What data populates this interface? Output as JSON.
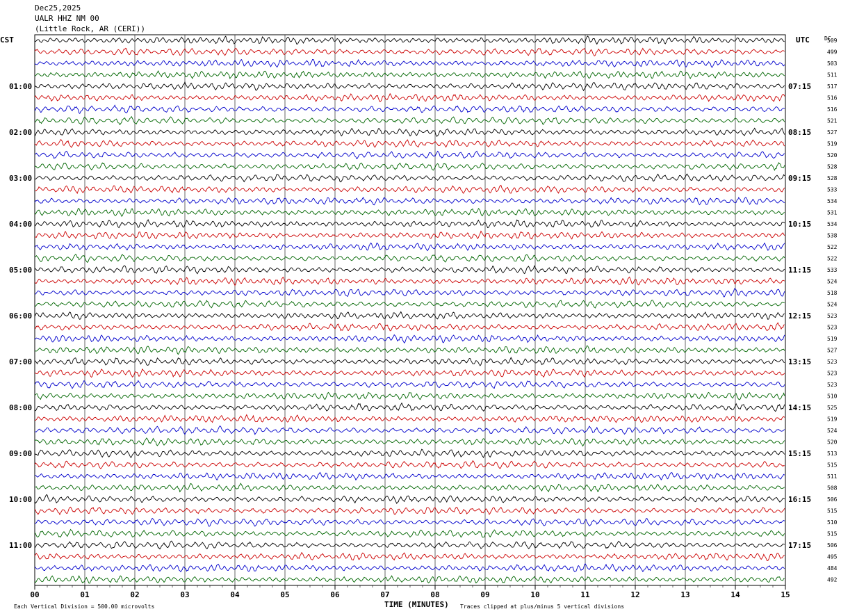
{
  "header": {
    "date": "Dec25,2025",
    "station": "UALR HHZ NM 00",
    "location": "(Little Rock, AR (CERI))"
  },
  "chart_data": {
    "type": "line",
    "description_kind": "helicorder",
    "left_axis_label": "CST",
    "right_axis_label": "UTC",
    "dc_header": "DC",
    "xlabel": "TIME (MINUTES)",
    "x_ticks": [
      "00",
      "01",
      "02",
      "03",
      "04",
      "05",
      "06",
      "07",
      "08",
      "09",
      "10",
      "11",
      "12",
      "13",
      "14",
      "15"
    ],
    "xlim": [
      0,
      15
    ],
    "trace_colors": [
      "#000000",
      "#cc0000",
      "#0000cc",
      "#006600"
    ],
    "grid": true,
    "left_hour_labels": [
      {
        "row": 4,
        "text": "01:00"
      },
      {
        "row": 8,
        "text": "02:00"
      },
      {
        "row": 12,
        "text": "03:00"
      },
      {
        "row": 16,
        "text": "04:00"
      },
      {
        "row": 20,
        "text": "05:00"
      },
      {
        "row": 24,
        "text": "06:00"
      },
      {
        "row": 28,
        "text": "07:00"
      },
      {
        "row": 32,
        "text": "08:00"
      },
      {
        "row": 36,
        "text": "09:00"
      },
      {
        "row": 40,
        "text": "10:00"
      },
      {
        "row": 44,
        "text": "11:00"
      }
    ],
    "right_hour_labels": [
      {
        "row": 4,
        "text": "07:15"
      },
      {
        "row": 8,
        "text": "08:15"
      },
      {
        "row": 12,
        "text": "09:15"
      },
      {
        "row": 16,
        "text": "10:15"
      },
      {
        "row": 20,
        "text": "11:15"
      },
      {
        "row": 24,
        "text": "12:15"
      },
      {
        "row": 28,
        "text": "13:15"
      },
      {
        "row": 32,
        "text": "14:15"
      },
      {
        "row": 36,
        "text": "15:15"
      },
      {
        "row": 40,
        "text": "16:15"
      },
      {
        "row": 44,
        "text": "17:15"
      }
    ],
    "dc_offsets": [
      "509",
      "499",
      "503",
      "511",
      "517",
      "516",
      "516",
      "521",
      "527",
      "519",
      "520",
      "528",
      "528",
      "533",
      "534",
      "531",
      "534",
      "538",
      "522",
      "522",
      "533",
      "524",
      "518",
      "524",
      "523",
      "523",
      "519",
      "527",
      "523",
      "523",
      "523",
      "510",
      "525",
      "519",
      "524",
      "520",
      "513",
      "515",
      "511",
      "508",
      "506",
      "515",
      "510",
      "515",
      "506",
      "495",
      "484",
      "492"
    ],
    "footer_left": "Each Vertical Division =  500.00 microvolts",
    "footer_right": "Traces clipped at plus/minus 5 vertical divisions"
  }
}
